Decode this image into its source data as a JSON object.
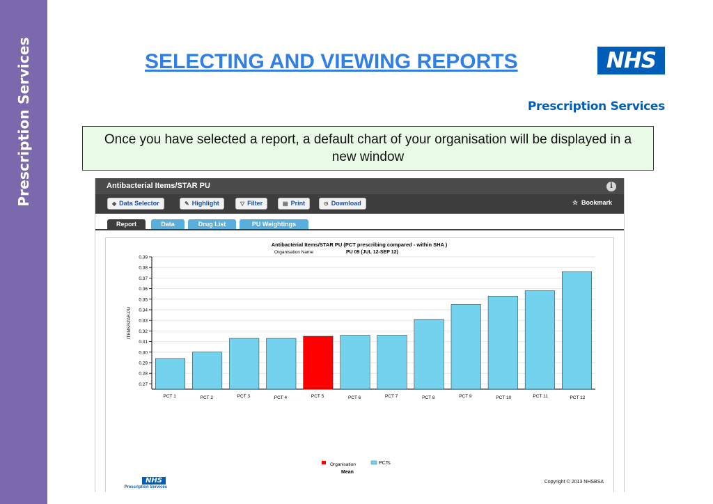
{
  "slide": {
    "sidebar_label": "Prescription Services",
    "title": "SELECTING AND VIEWING REPORTS",
    "logo_text": "NHS",
    "logo_subtitle": "Prescription Services",
    "instruction": "Once you have selected a report, a default chart of your organisation will be displayed in a new window"
  },
  "window": {
    "title": "Antibacterial Items/STAR PU",
    "info_icon": "i",
    "toolbar": [
      {
        "label": "Data Selector",
        "icon": "data-selector-icon",
        "glyph": "◆"
      },
      {
        "label": "Highlight",
        "icon": "highlight-icon",
        "glyph": "✎"
      },
      {
        "label": "Filter",
        "icon": "filter-icon",
        "glyph": "▽"
      },
      {
        "label": "Print",
        "icon": "print-icon",
        "glyph": "▤"
      },
      {
        "label": "Download",
        "icon": "download-icon",
        "glyph": "⊙"
      }
    ],
    "bookmark": {
      "label": "Bookmark",
      "icon": "star-icon",
      "glyph": "☆"
    },
    "tabs": [
      {
        "label": "Report",
        "active": true
      },
      {
        "label": "Data",
        "active": false
      },
      {
        "label": "Drug List",
        "active": false
      },
      {
        "label": "PU Weightings",
        "active": false
      }
    ],
    "copyright": "Copyright © 2013 NHSBSA",
    "footer_logo_text": "NHS",
    "footer_logo_subtitle": "Prescription Services"
  },
  "chart_data": {
    "type": "bar",
    "title": "Antibacterial Items/STAR PU   (PCT prescribing compared - within SHA )",
    "subtitle_label": "Organisation Name",
    "subtitle_value": "PU 09 (JUL 12-SEP 12)",
    "ylabel": "ITEMS/STAR-PU",
    "xlabel": "",
    "ylim": [
      0.265,
      0.39
    ],
    "yticks": [
      0.27,
      0.28,
      0.29,
      0.3,
      0.31,
      0.32,
      0.33,
      0.34,
      0.35,
      0.36,
      0.37,
      0.38,
      0.39
    ],
    "ytick_labels": [
      "0.27",
      "0.28",
      "0.29",
      "0.30",
      "0.31",
      "0.32",
      "0.33",
      "0.34",
      "0.35",
      "0.36",
      "0.37",
      "0.38",
      "0.39"
    ],
    "grid": true,
    "categories": [
      "PCT 1",
      "PCT 2",
      "PCT 3",
      "PCT 4",
      "PCT 5",
      "PCT 6",
      "PCT 7",
      "PCT 8",
      "PCT 9",
      "PCT 10",
      "PCT 11",
      "PCT 12"
    ],
    "values": [
      0.294,
      0.3,
      0.313,
      0.313,
      0.315,
      0.316,
      0.316,
      0.331,
      0.345,
      0.353,
      0.358,
      0.376
    ],
    "highlight_index": 4,
    "colors": {
      "bar": "#73d3ef",
      "highlight": "#ff0000",
      "grid": "#e6e6e6",
      "axis": "#000000"
    },
    "legend": [
      {
        "label": "Organisation",
        "color": "#ff0000"
      },
      {
        "label": "PCTs",
        "color": "#73d3ef"
      }
    ],
    "legend_cut_text": "Mean",
    "legend_position": "bottom-center"
  }
}
